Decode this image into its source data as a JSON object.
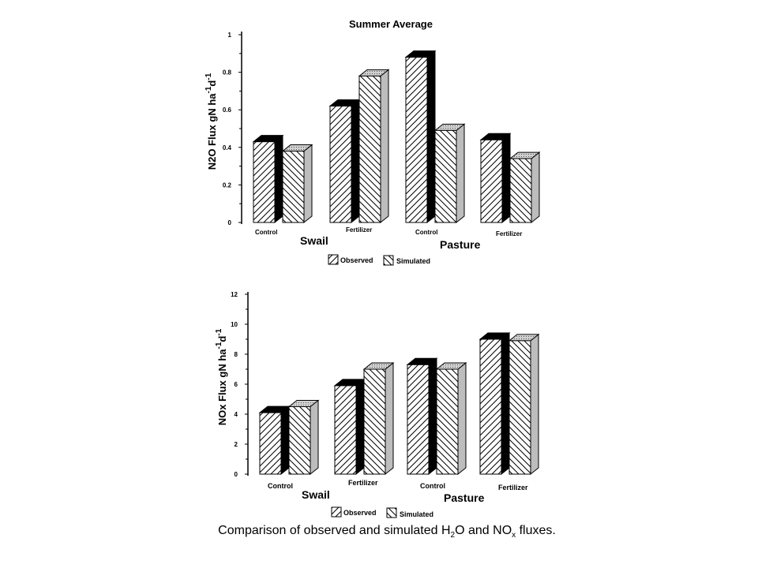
{
  "legend": {
    "observed": "Observed",
    "simulated": "Simulated"
  },
  "caption": {
    "pre": "Comparison of observed and simulated H",
    "sub1": "2",
    "mid": "O and NO",
    "sub2": "x",
    "post": " fluxes."
  },
  "chart_data": [
    {
      "type": "bar",
      "title": "Summer Average",
      "ylabel_main": "N2O Flux gN ha",
      "ylabel_sup1": "-1",
      "ylabel_mid": "d",
      "ylabel_sup2": "-1",
      "ylim": [
        0,
        1
      ],
      "yticks": [
        "0",
        "0.2",
        "0.4",
        "0.6",
        "0.8",
        "1"
      ],
      "categories": [
        "Control",
        "Fertilizer",
        "Control",
        "Fertilizer"
      ],
      "groups": [
        "Swail",
        "Pasture"
      ],
      "series": [
        {
          "name": "Observed",
          "values": [
            0.43,
            0.62,
            0.88,
            0.44
          ]
        },
        {
          "name": "Simulated",
          "values": [
            0.38,
            0.78,
            0.49,
            0.34
          ]
        }
      ]
    },
    {
      "type": "bar",
      "title": "",
      "ylabel_main": "NOx  Flux gN ha",
      "ylabel_sup1": "-1",
      "ylabel_mid": "d",
      "ylabel_sup2": "-1",
      "ylim": [
        0,
        12
      ],
      "yticks": [
        "0",
        "2",
        "4",
        "6",
        "8",
        "10",
        "12"
      ],
      "categories": [
        "Control",
        "Fertilizer",
        "Control",
        "Fertilizer"
      ],
      "groups": [
        "Swail",
        "Pasture"
      ],
      "series": [
        {
          "name": "Observed",
          "values": [
            4.1,
            5.9,
            7.3,
            9.0
          ]
        },
        {
          "name": "Simulated",
          "values": [
            4.5,
            7.0,
            7.0,
            8.9
          ]
        }
      ]
    }
  ]
}
